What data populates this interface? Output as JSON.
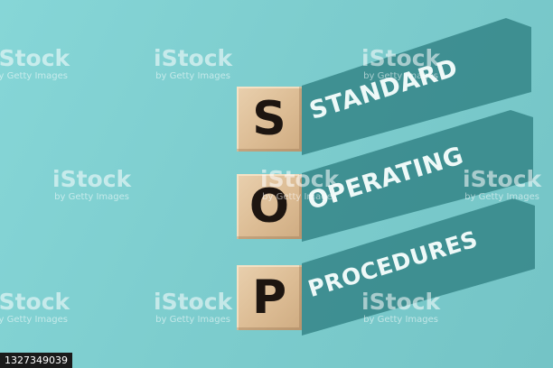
{
  "cubes": [
    {
      "letter": "S"
    },
    {
      "letter": "O"
    },
    {
      "letter": "P"
    }
  ],
  "words": [
    "STANDARD",
    "OPERATING",
    "PROCEDURES"
  ],
  "watermark": {
    "brand": "iStock",
    "credit": "by Getty Images"
  },
  "stock_id": "1327349039",
  "colors": {
    "background": "#7fcfd0",
    "shadow": "#2e7f82",
    "cube_wood": "#dcbc94",
    "letter": "#1d1510",
    "word_text": "#eef9f8"
  }
}
